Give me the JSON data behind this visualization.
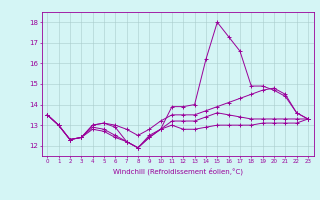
{
  "xlabel": "Windchill (Refroidissement éolien,°C)",
  "x": [
    0,
    1,
    2,
    3,
    4,
    5,
    6,
    7,
    8,
    9,
    10,
    11,
    12,
    13,
    14,
    15,
    16,
    17,
    18,
    19,
    20,
    21,
    22,
    23
  ],
  "line1": [
    13.5,
    13.0,
    12.3,
    12.4,
    13.0,
    13.1,
    12.9,
    12.2,
    11.9,
    12.5,
    12.8,
    13.9,
    13.9,
    14.0,
    16.2,
    18.0,
    17.3,
    16.6,
    14.9,
    14.9,
    14.7,
    14.4,
    13.6,
    13.3
  ],
  "line2": [
    13.5,
    13.0,
    12.3,
    12.4,
    13.0,
    13.1,
    13.0,
    12.8,
    12.5,
    12.8,
    13.2,
    13.5,
    13.5,
    13.5,
    13.7,
    13.9,
    14.1,
    14.3,
    14.5,
    14.7,
    14.8,
    14.5,
    13.6,
    13.3
  ],
  "line3": [
    13.5,
    13.0,
    12.3,
    12.4,
    12.9,
    12.8,
    12.5,
    12.2,
    11.9,
    12.4,
    12.8,
    13.2,
    13.2,
    13.2,
    13.4,
    13.6,
    13.5,
    13.4,
    13.3,
    13.3,
    13.3,
    13.3,
    13.3,
    13.3
  ],
  "line4": [
    13.5,
    13.0,
    12.3,
    12.4,
    12.8,
    12.7,
    12.4,
    12.2,
    11.9,
    12.4,
    12.8,
    13.0,
    12.8,
    12.8,
    12.9,
    13.0,
    13.0,
    13.0,
    13.0,
    13.1,
    13.1,
    13.1,
    13.1,
    13.3
  ],
  "line_color": "#990099",
  "bg_color": "#d4f5f5",
  "grid_color": "#aacccc",
  "ylim": [
    11.5,
    18.5
  ],
  "yticks": [
    12,
    13,
    14,
    15,
    16,
    17,
    18
  ],
  "xlim": [
    -0.5,
    23.5
  ]
}
